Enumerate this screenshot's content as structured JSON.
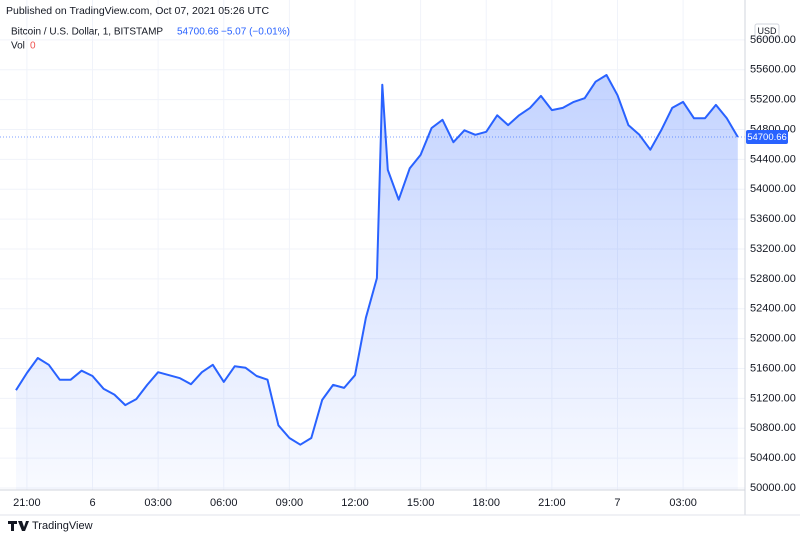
{
  "chart_data": {
    "type": "area",
    "published": "Published on TradingView.com, Oct 07, 2021 05:26 UTC",
    "symbol": "Bitcoin / U.S. Dollar, 1, BITSTAMP",
    "last_price": 54700.66,
    "change": "−5.07 (−0.01%)",
    "volume_label": "Vol",
    "volume_value": 0,
    "currency": "USD",
    "brand": "TradingView",
    "x": [
      -0.5,
      0,
      0.5,
      1,
      1.5,
      2,
      2.5,
      3,
      3.5,
      4,
      4.5,
      5,
      5.5,
      6,
      6.5,
      7,
      7.5,
      8,
      8.5,
      9,
      9.5,
      10,
      10.5,
      11,
      11.5,
      12,
      12.5,
      13,
      13.5,
      14,
      14.5,
      15,
      15.5,
      16,
      16.25,
      16.5,
      17,
      17.5,
      18,
      18.5,
      19,
      19.5,
      20,
      20.5,
      21,
      21.5,
      22,
      22.5,
      23,
      23.5,
      24,
      24.5,
      25,
      25.5,
      26,
      26.5,
      27,
      27.5,
      28,
      28.5,
      29,
      29.5,
      30,
      30.5,
      31,
      31.5,
      32,
      32.5
    ],
    "series": [
      {
        "color": "#2962ff",
        "values": [
          51310,
          51540,
          51740,
          51650,
          51450,
          51450,
          51570,
          51500,
          51330,
          51250,
          51110,
          51190,
          51380,
          51550,
          51510,
          51470,
          51390,
          51550,
          51650,
          51420,
          51630,
          51610,
          51500,
          51450,
          50840,
          50670,
          50580,
          50670,
          51180,
          51380,
          51340,
          51510,
          52280,
          52810,
          55400,
          54260,
          53860,
          54280,
          54460,
          54820,
          54930,
          54630,
          54790,
          54730,
          54770,
          54990,
          54860,
          54990,
          55090,
          55250,
          55060,
          55090,
          55170,
          55220,
          55440,
          55530,
          55260,
          54860,
          54730,
          54530,
          54790,
          55090,
          55170,
          54950,
          54950,
          55130,
          54950,
          54700.66
        ]
      }
    ],
    "xlim": [
      -1.23,
      32.83
    ],
    "xticks": [
      {
        "value": 0,
        "label": "21:00"
      },
      {
        "value": 3,
        "label": "6"
      },
      {
        "value": 6,
        "label": "03:00"
      },
      {
        "value": 9,
        "label": "06:00"
      },
      {
        "value": 12,
        "label": "09:00"
      },
      {
        "value": 15,
        "label": "12:00"
      },
      {
        "value": 18,
        "label": "15:00"
      },
      {
        "value": 21,
        "label": "18:00"
      },
      {
        "value": 24,
        "label": "21:00"
      },
      {
        "value": 27,
        "label": "7"
      },
      {
        "value": 30,
        "label": "03:00"
      }
    ],
    "ylim": [
      49973,
      56240
    ],
    "yticks": [
      {
        "value": 50000,
        "label": "50000.00"
      },
      {
        "value": 50400,
        "label": "50400.00"
      },
      {
        "value": 50800,
        "label": "50800.00"
      },
      {
        "value": 51200,
        "label": "51200.00"
      },
      {
        "value": 51600,
        "label": "51600.00"
      },
      {
        "value": 52000,
        "label": "52000.00"
      },
      {
        "value": 52400,
        "label": "52400.00"
      },
      {
        "value": 52800,
        "label": "52800.00"
      },
      {
        "value": 53200,
        "label": "53200.00"
      },
      {
        "value": 53600,
        "label": "53600.00"
      },
      {
        "value": 54000,
        "label": "54000.00"
      },
      {
        "value": 54400,
        "label": "54400.00"
      },
      {
        "value": 54800,
        "label": "54800.00"
      },
      {
        "value": 55200,
        "label": "55200.00"
      },
      {
        "value": 55600,
        "label": "55600.00"
      },
      {
        "value": 56000,
        "label": "56000.00"
      }
    ],
    "grid": true
  }
}
